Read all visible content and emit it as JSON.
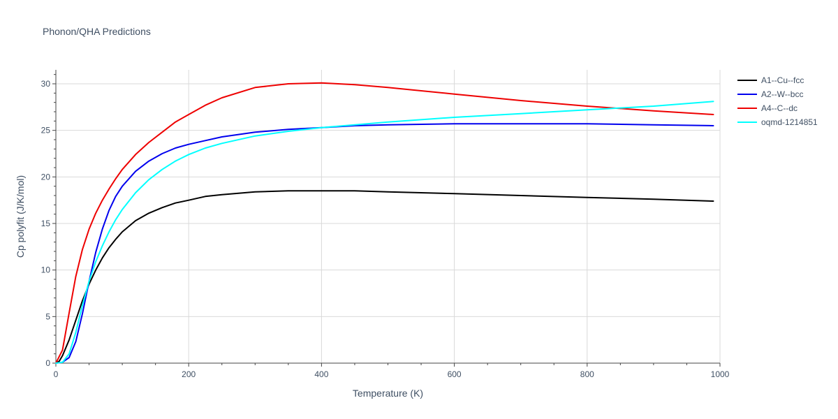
{
  "chart_data": {
    "type": "line",
    "title": "Phonon/QHA Predictions",
    "xlabel": "Temperature (K)",
    "ylabel": "Cp polyfit (J/K/mol)",
    "xlim": [
      0,
      1000
    ],
    "ylim": [
      0,
      31.5
    ],
    "xticks": [
      0,
      200,
      400,
      600,
      800,
      1000
    ],
    "yticks": [
      0,
      5,
      10,
      15,
      20,
      25,
      30
    ],
    "grid": true,
    "legend_position": "top-right",
    "series": [
      {
        "name": "A1--Cu--fcc",
        "color": "#000000",
        "x": [
          0,
          5,
          10,
          20,
          30,
          40,
          50,
          60,
          70,
          80,
          90,
          100,
          120,
          140,
          160,
          180,
          200,
          225,
          250,
          300,
          350,
          400,
          450,
          500,
          600,
          700,
          800,
          900,
          990
        ],
        "y": [
          0,
          0.2,
          0.8,
          2.5,
          4.6,
          6.7,
          8.5,
          10.0,
          11.3,
          12.4,
          13.3,
          14.1,
          15.3,
          16.1,
          16.7,
          17.2,
          17.5,
          17.9,
          18.1,
          18.4,
          18.5,
          18.5,
          18.5,
          18.4,
          18.2,
          18.0,
          17.8,
          17.6,
          17.4
        ]
      },
      {
        "name": "A2--W--bcc",
        "color": "#0000ee",
        "x": [
          0,
          10,
          20,
          30,
          40,
          50,
          60,
          70,
          80,
          90,
          100,
          120,
          140,
          160,
          180,
          200,
          225,
          250,
          300,
          350,
          400,
          450,
          500,
          600,
          700,
          800,
          900,
          990
        ],
        "y": [
          0,
          0.1,
          0.6,
          2.3,
          5.3,
          8.8,
          11.9,
          14.4,
          16.4,
          17.9,
          19.0,
          20.6,
          21.7,
          22.5,
          23.1,
          23.5,
          23.9,
          24.3,
          24.8,
          25.1,
          25.3,
          25.5,
          25.6,
          25.7,
          25.7,
          25.7,
          25.6,
          25.5
        ]
      },
      {
        "name": "A4--C--dc",
        "color": "#ee0000",
        "x": [
          0,
          10,
          20,
          30,
          40,
          50,
          60,
          70,
          80,
          90,
          100,
          120,
          140,
          160,
          180,
          200,
          225,
          250,
          300,
          350,
          400,
          450,
          500,
          600,
          700,
          800,
          900,
          990
        ],
        "y": [
          0,
          1.4,
          5.4,
          9.3,
          12.2,
          14.4,
          16.1,
          17.5,
          18.7,
          19.8,
          20.8,
          22.4,
          23.7,
          24.8,
          25.9,
          26.7,
          27.7,
          28.5,
          29.6,
          30.0,
          30.1,
          29.9,
          29.6,
          28.9,
          28.2,
          27.6,
          27.1,
          26.7
        ]
      },
      {
        "name": "oqmd-1214851",
        "color": "#00ffff",
        "x": [
          0,
          10,
          20,
          30,
          40,
          50,
          60,
          70,
          80,
          90,
          100,
          120,
          140,
          160,
          180,
          200,
          225,
          250,
          300,
          350,
          400,
          450,
          500,
          600,
          700,
          800,
          900,
          990
        ],
        "y": [
          0,
          0.1,
          1.0,
          3.3,
          6.2,
          8.8,
          10.9,
          12.6,
          14.1,
          15.4,
          16.5,
          18.3,
          19.7,
          20.8,
          21.7,
          22.4,
          23.1,
          23.6,
          24.4,
          24.9,
          25.3,
          25.6,
          25.9,
          26.4,
          26.8,
          27.2,
          27.6,
          28.1
        ]
      }
    ]
  }
}
